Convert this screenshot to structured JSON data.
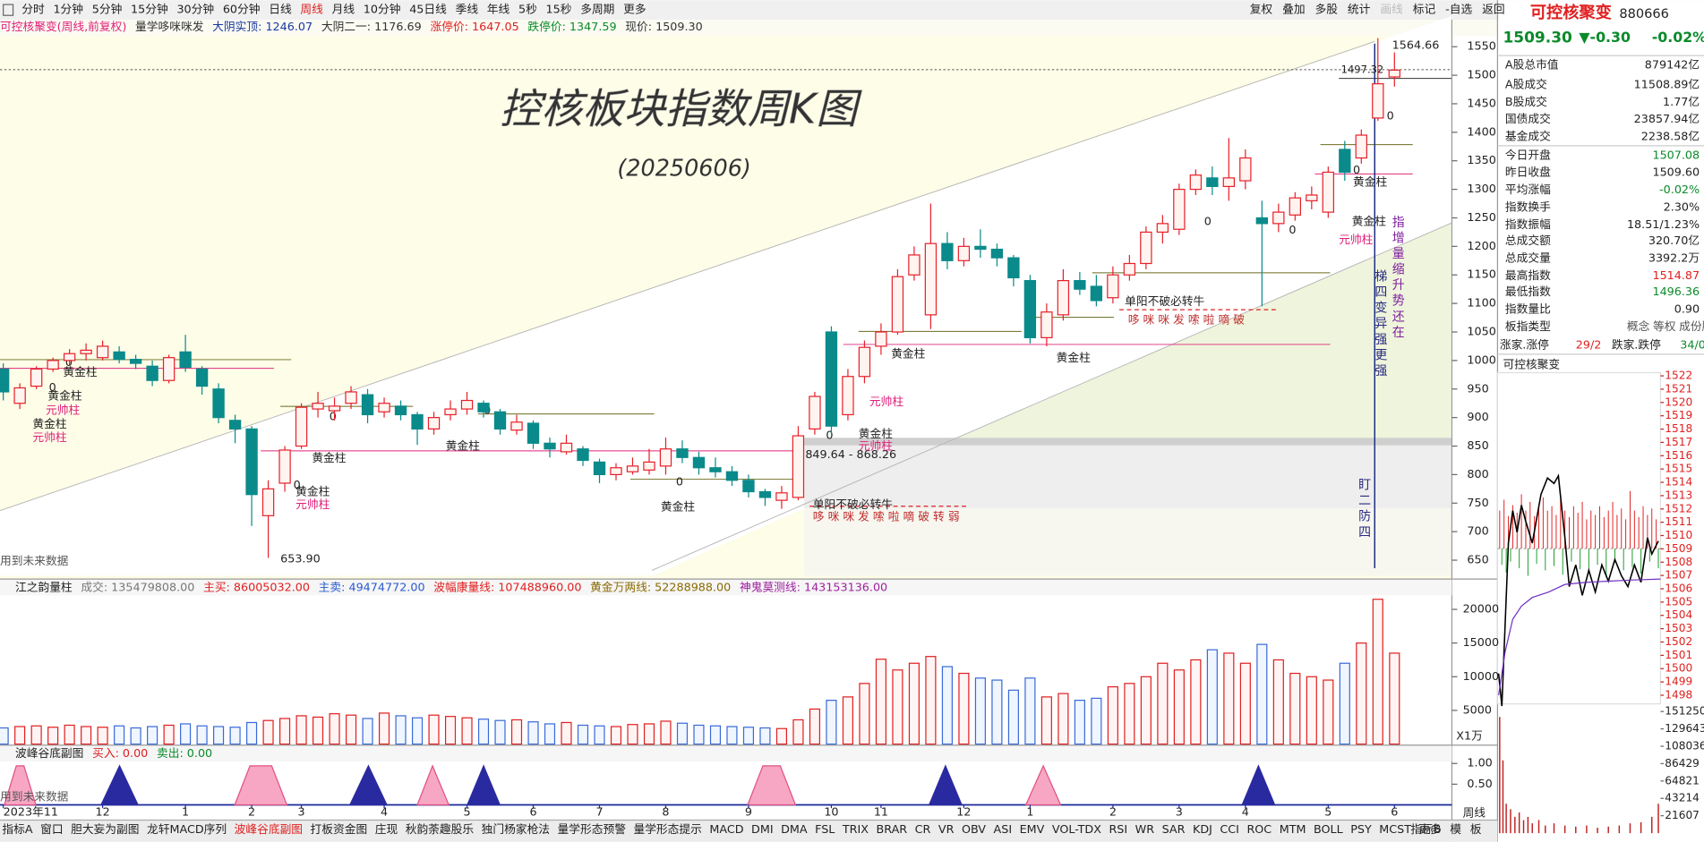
{
  "toolbar": {
    "periods": [
      "分时",
      "1分钟",
      "5分钟",
      "15分钟",
      "30分钟",
      "60分钟",
      "日线",
      "周线",
      "月线",
      "10分钟",
      "45日线",
      "季线",
      "年线",
      "5秒",
      "15秒",
      "多周期",
      "更多"
    ],
    "tools": [
      "复权",
      "叠加",
      "多股",
      "统计",
      "画线",
      "标记",
      "-自选",
      "返回"
    ]
  },
  "info_bar": [
    "可控核聚变(周线,前复权)",
    "量学哆咪咪发",
    "大阴实顶: 1246.07",
    "大阴二一: 1176.69",
    "涨停价: 1647.05",
    "跌停价: 1347.59",
    "现价: 1509.30"
  ],
  "kline": {
    "type": "candlestick",
    "title": "控核板块指数周K图",
    "subtitle": "(20250606)",
    "ylim": [
      617,
      1563
    ],
    "yticks": [
      650,
      700,
      750,
      800,
      850,
      900,
      950,
      1000,
      1050,
      1100,
      1150,
      1200,
      1250,
      1300,
      1350,
      1400,
      1450,
      1500,
      1550
    ],
    "categories": [
      "2023年11",
      null,
      null,
      null,
      null,
      null,
      "12",
      null,
      null,
      null,
      null,
      "1",
      null,
      null,
      null,
      "2",
      null,
      null,
      "3",
      null,
      null,
      null,
      null,
      "4",
      null,
      null,
      null,
      null,
      "5",
      null,
      null,
      null,
      "6",
      null,
      null,
      null,
      "7",
      null,
      null,
      null,
      "8",
      null,
      null,
      null,
      null,
      "9",
      null,
      null,
      null,
      null,
      "10",
      null,
      null,
      "11",
      null,
      null,
      null,
      null,
      "12",
      null,
      null,
      null,
      "1",
      null,
      null,
      null,
      null,
      "2",
      null,
      null,
      null,
      "3",
      null,
      null,
      null,
      "4",
      null,
      null,
      null,
      null,
      "5",
      null,
      null,
      null,
      "6"
    ],
    "open": [
      985,
      925,
      955,
      985,
      1000,
      1012,
      1005,
      1015,
      1002,
      990,
      965,
      1015,
      985,
      950,
      895,
      880,
      728,
      785,
      850,
      915,
      912,
      925,
      940,
      910,
      920,
      905,
      880,
      905,
      915,
      925,
      910,
      878,
      890,
      855,
      840,
      845,
      822,
      800,
      805,
      808,
      815,
      845,
      830,
      812,
      805,
      790,
      770,
      755,
      760,
      880,
      1050,
      905,
      972,
      1025,
      1050,
      1150,
      1080,
      1205,
      1175,
      1200,
      1195,
      1180,
      1140,
      1040,
      1080,
      1140,
      1130,
      1110,
      1150,
      1170,
      1225,
      1230,
      1300,
      1320,
      1305,
      1315,
      1250,
      1240,
      1255,
      1280,
      1260,
      1370,
      1355,
      1425,
      1497
    ],
    "high": [
      995,
      960,
      990,
      1005,
      1020,
      1030,
      1035,
      1025,
      1010,
      1000,
      1010,
      1045,
      990,
      960,
      905,
      885,
      790,
      850,
      925,
      945,
      935,
      955,
      950,
      935,
      930,
      910,
      910,
      930,
      945,
      930,
      915,
      905,
      895,
      865,
      870,
      850,
      828,
      820,
      830,
      845,
      865,
      860,
      840,
      830,
      815,
      800,
      775,
      780,
      885,
      945,
      1060,
      985,
      1035,
      1065,
      1160,
      1200,
      1275,
      1225,
      1215,
      1230,
      1205,
      1185,
      1150,
      1100,
      1160,
      1155,
      1150,
      1165,
      1185,
      1235,
      1255,
      1310,
      1335,
      1340,
      1390,
      1370,
      1280,
      1275,
      1295,
      1305,
      1340,
      1385,
      1405,
      1565,
      1540
    ],
    "low": [
      930,
      915,
      950,
      980,
      990,
      1000,
      1000,
      995,
      985,
      955,
      960,
      980,
      940,
      890,
      855,
      710,
      654,
      770,
      845,
      900,
      895,
      915,
      890,
      900,
      895,
      852,
      870,
      895,
      905,
      900,
      870,
      870,
      845,
      830,
      835,
      815,
      785,
      790,
      800,
      800,
      800,
      820,
      800,
      795,
      780,
      760,
      745,
      740,
      755,
      870,
      870,
      895,
      960,
      1010,
      1045,
      1140,
      1055,
      1160,
      1165,
      1180,
      1165,
      1130,
      1030,
      1025,
      1070,
      1115,
      1095,
      1100,
      1140,
      1160,
      1205,
      1220,
      1290,
      1290,
      1280,
      1300,
      1095,
      1225,
      1245,
      1265,
      1250,
      1315,
      1345,
      1420,
      1480
    ],
    "close": [
      945,
      952,
      985,
      1000,
      1012,
      1018,
      1025,
      1002,
      995,
      965,
      1005,
      988,
      955,
      900,
      880,
      765,
      775,
      843,
      918,
      925,
      920,
      945,
      905,
      925,
      905,
      880,
      900,
      915,
      930,
      910,
      880,
      892,
      855,
      845,
      855,
      825,
      800,
      812,
      815,
      822,
      845,
      830,
      812,
      805,
      790,
      770,
      760,
      768,
      868,
      937,
      885,
      972,
      1023,
      1050,
      1147,
      1185,
      1205,
      1175,
      1200,
      1195,
      1180,
      1145,
      1040,
      1085,
      1140,
      1125,
      1105,
      1150,
      1170,
      1225,
      1240,
      1300,
      1325,
      1305,
      1320,
      1355,
      1240,
      1260,
      1285,
      1290,
      1330,
      1330,
      1395,
      1485,
      1509
    ],
    "annotations": [
      "1564.66",
      "1497.32",
      "653.90",
      "849.64 - 868.26",
      "用到未来数据",
      "用到未来数据",
      "单阳不破必转牛",
      "单阳不破必转牛",
      "哆 咪 咪 发 嗦 啦 嘀 破",
      "哆 咪 咪 发 嗦 啦 嘀 破 转 弱",
      "梯四变异强更强",
      "指增量缩升势还在",
      "盯二防四",
      "黄金柱",
      "黄金柱",
      "黄金柱",
      "黄金柱",
      "黄金柱",
      "黄金柱",
      "黄金柱",
      "黄金柱",
      "黄金柱",
      "黄金柱",
      "黄金柱",
      "黄金柱",
      "元帅柱",
      "元帅柱",
      "元帅柱",
      "元帅柱",
      "元帅柱",
      "元帅柱",
      "0",
      "0",
      "0",
      "0",
      "0",
      "0",
      "0",
      "0",
      "0",
      "0",
      "0"
    ]
  },
  "volume": {
    "header": [
      "江之韵量柱",
      "成交: 135479808.00",
      "主买: 86005032.00",
      "主卖: 49474772.00",
      "波幅康量线: 107488960.00",
      "黄金万两线: 52288988.00",
      "神鬼莫测线: 143153136.00"
    ],
    "unit": "X1万",
    "ylim": [
      0,
      23700
    ],
    "yticks": [
      5000,
      10000,
      15000,
      20000
    ],
    "values": [
      2400,
      2600,
      2700,
      2500,
      2800,
      2600,
      2500,
      2700,
      2400,
      2600,
      2800,
      3000,
      2700,
      2600,
      2500,
      3200,
      3500,
      3800,
      4200,
      4000,
      4500,
      4300,
      3800,
      4600,
      4200,
      3900,
      4300,
      4100,
      3900,
      3700,
      3500,
      3600,
      3300,
      3000,
      3200,
      2800,
      2700,
      2600,
      2900,
      3000,
      3400,
      3100,
      2800,
      2700,
      2600,
      2500,
      2400,
      2300,
      3600,
      5200,
      6500,
      7000,
      9000,
      12600,
      11000,
      12000,
      13000,
      11500,
      10500,
      9800,
      9500,
      8000,
      9800,
      7000,
      7500,
      6500,
      6800,
      8500,
      9000,
      10000,
      12000,
      11000,
      12500,
      14000,
      13500,
      12000,
      14800,
      12500,
      10500,
      10000,
      9500,
      12000,
      15000,
      21500,
      13500
    ]
  },
  "indicator": {
    "header": [
      "波峰谷底副图",
      "买入: 0.00",
      "卖出: 0.00"
    ],
    "ylim": [
      0,
      1.39
    ],
    "yticks": [
      {
        "value": 0.5,
        "label": "0.50"
      },
      {
        "value": 1,
        "label": "1.00"
      }
    ]
  },
  "tabs": [
    "指标A",
    "窗口",
    "胆大妄为副图",
    "龙轩MACD序列",
    "波峰谷底副图",
    "打板资金图",
    "庄现",
    "秋韵荼趣股乐",
    "独门杨家枪法",
    "量学形态预警",
    "量学形态提示",
    "MACD",
    "DMI",
    "DMA",
    "FSL",
    "TRIX",
    "BRAR",
    "CR",
    "VR",
    "OBV",
    "ASI",
    "EMV",
    "VOL-TDX",
    "RSI",
    "WR",
    "SAR",
    "KDJ",
    "CCI",
    "ROC",
    "MTM",
    "BOLL",
    "PSY",
    "MCST",
    "更多"
  ],
  "tabs_right": [
    "指标B",
    "模",
    "板"
  ],
  "period_label": "周线",
  "sidebar": {
    "name": "可控核聚变",
    "code": "880666",
    "price": "1509.30",
    "change": "▼-0.30",
    "pct": "-0.02%",
    "rows": [
      [
        "A股总市值",
        "879142亿"
      ],
      [
        "A股成交",
        "11508.89亿"
      ],
      [
        "B股成交",
        "1.77亿"
      ],
      [
        "国债成交",
        "23857.94亿"
      ],
      [
        "基金成交",
        "2238.58亿"
      ],
      [
        "今日开盘",
        "1507.08"
      ],
      [
        "昨日收盘",
        "1509.60"
      ],
      [
        "平均涨幅",
        "-0.02%"
      ],
      [
        "指数换手",
        "2.30%"
      ],
      [
        "指数振幅",
        "18.51/1.23%"
      ],
      [
        "总成交额",
        "320.70亿"
      ],
      [
        "总成交量",
        "3392.2万"
      ],
      [
        "最高指数",
        "1514.87"
      ],
      [
        "最低指数",
        "1496.36"
      ],
      [
        "指数量比",
        "0.90"
      ]
    ],
    "type_row": [
      "板指类型",
      "概念",
      "等权",
      "成份股"
    ],
    "breadth": [
      "涨家.涨停",
      "29/2",
      "跌家.跌停",
      "34/0"
    ]
  },
  "intraday": {
    "title": "可控核聚变",
    "ylim": [
      1497.35,
      1522.24
    ],
    "yticks": [
      1522,
      1521,
      1520,
      1519,
      1518,
      1517,
      1516,
      1515,
      1514,
      1513,
      1512,
      1511,
      1510,
      1509,
      1508,
      1507,
      1506,
      1505,
      1504,
      1503,
      1502,
      1501,
      1500,
      1499,
      1498
    ],
    "vol_ylim": [
      0,
      160700
    ],
    "vol_ticks": [
      151250,
      129643,
      108036,
      86429,
      64821,
      43214,
      21607
    ]
  }
}
